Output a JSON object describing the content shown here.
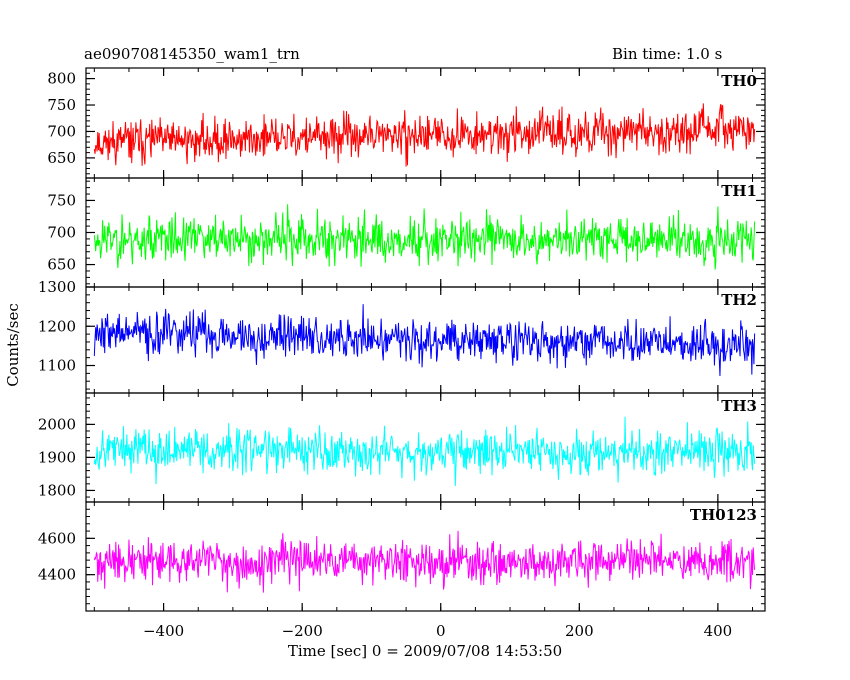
{
  "header": {
    "title": "ae090708145350_wam1_trn",
    "bin_time": "Bin time: 1.0 s"
  },
  "chart_data": {
    "type": "line",
    "title": "ae090708145350_wam1_trn",
    "subtitle": "Bin time: 1.0 s",
    "xlabel": "Time [sec] 0 = 2009/07/08 14:53:50",
    "ylabel": "Counts/sec",
    "xlim": [
      -512,
      468
    ],
    "x_range_data": [
      -500,
      453
    ],
    "x_step": 1,
    "xticks": [
      -400,
      -200,
      0,
      200,
      400
    ],
    "xtick_labels": [
      "−400",
      "−200",
      "0",
      "200",
      "400"
    ],
    "grid": false,
    "legend": "none",
    "panels": [
      {
        "name": "TH0",
        "color": "#ff0000",
        "ylim": [
          612,
          820
        ],
        "yticks": [
          650,
          700,
          750,
          800
        ],
        "mean_start": 680,
        "mean_end": 705,
        "noise": 32,
        "seed": 11
      },
      {
        "name": "TH1",
        "color": "#00ff00",
        "ylim": [
          615,
          785
        ],
        "yticks": [
          650,
          700,
          750
        ],
        "mean_start": 690,
        "mean_end": 690,
        "noise": 30,
        "seed": 23
      },
      {
        "name": "TH2",
        "color": "#0000ff",
        "ylim": [
          1030,
          1300
        ],
        "yticks": [
          1100,
          1200,
          1300
        ],
        "mean_start": 1185,
        "mean_end": 1150,
        "noise": 45,
        "seed": 37
      },
      {
        "name": "TH3",
        "color": "#00ffff",
        "ylim": [
          1765,
          2095
        ],
        "yticks": [
          1800,
          1900,
          2000
        ],
        "mean_start": 1925,
        "mean_end": 1915,
        "noise": 55,
        "seed": 53
      },
      {
        "name": "TH0123",
        "color": "#ff00ff",
        "ylim": [
          4200,
          4800
        ],
        "yticks": [
          4400,
          4600
        ],
        "mean_start": 4470,
        "mean_end": 4475,
        "noise": 95,
        "seed": 71
      }
    ]
  }
}
